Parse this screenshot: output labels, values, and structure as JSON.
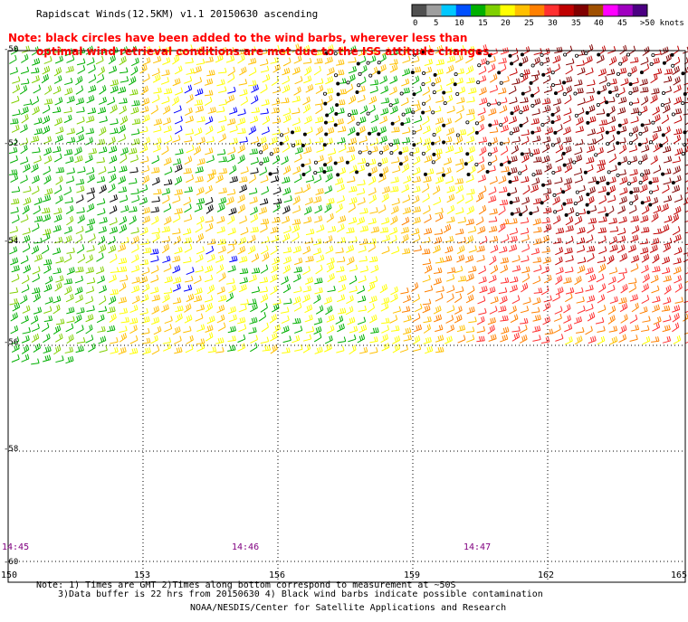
{
  "title": "Rapidscat Winds(12.5KM) v1.1 20150630 ascending",
  "note_line1": "Note: black circles have been added to the wind barbs, wherever less than",
  "note_line2": "optimal wind retrieval conditions are met due to the ISS attitude changes.",
  "colorbar": {
    "labels": [
      "0",
      "5",
      "10",
      "15",
      "20",
      "25",
      "30",
      "35",
      "40",
      "45",
      ">50 knots"
    ],
    "colors": [
      "#505050",
      "#9e9e9e",
      "#00c8ff",
      "#0050ff",
      "#00b000",
      "#7fd000",
      "#ffff00",
      "#ffc000",
      "#ff8000",
      "#ff3030",
      "#c00000",
      "#800000",
      "#a05000",
      "#ff00ff",
      "#a000c0",
      "#4b0082"
    ]
  },
  "latitude_labels": [
    "-50",
    "-52",
    "-54",
    "-56",
    "-58",
    "-60"
  ],
  "longitude_labels": [
    "150",
    "153",
    "156",
    "159",
    "162",
    "165"
  ],
  "time_labels": [
    "14:45",
    "14:46",
    "14:47"
  ],
  "footnote_line1": "Note: 1) Times are GMT 2)Times along bottom correspond to measurement at ~50S",
  "footnote_line2": "3)Data buffer is 22 hrs from 20150630 4) Black wind barbs indicate possible contamination",
  "credit": "NOAA/NESDIS/Center for Satellite Applications and Research",
  "barb_colors": {
    "blue": "#0000ff",
    "green": "#00b000",
    "light_green": "#7fd000",
    "yellow": "#ffff00",
    "gold": "#ffc000",
    "orange": "#ff8000",
    "red": "#ff3030",
    "dark_red": "#c00000",
    "maroon": "#800000",
    "contaminated": "#000000"
  }
}
